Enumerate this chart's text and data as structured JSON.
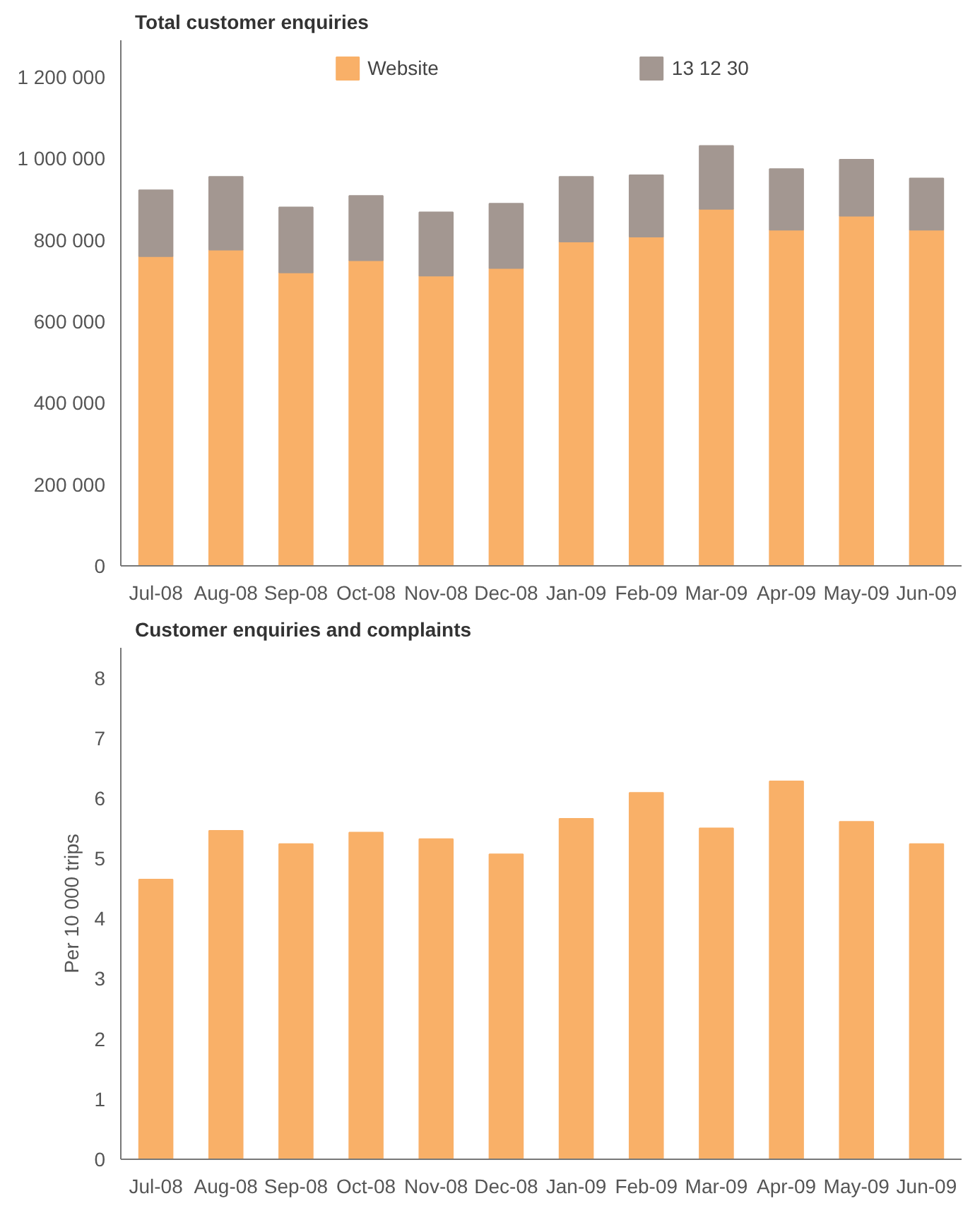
{
  "chart_data": [
    {
      "type": "bar",
      "title": "Total customer enquiries",
      "stacked": true,
      "grid": false,
      "legend": "top",
      "categories": [
        "Jul-08",
        "Aug-08",
        "Sep-08",
        "Oct-08",
        "Nov-08",
        "Dec-08",
        "Jan-09",
        "Feb-09",
        "Mar-09",
        "Apr-09",
        "May-09",
        "Jun-09"
      ],
      "series": [
        {
          "name": "Website",
          "color": "#f9b068",
          "values": [
            760000,
            776000,
            720000,
            750000,
            712000,
            731000,
            796000,
            808000,
            876000,
            825000,
            859000,
            825000
          ]
        },
        {
          "name": "13 12 30",
          "color": "#a39791",
          "values": [
            162000,
            179000,
            160000,
            158000,
            156000,
            158000,
            159000,
            151000,
            155000,
            149000,
            138000,
            126000
          ]
        }
      ],
      "ylim": [
        0,
        1290000
      ],
      "yticks": [
        0,
        {
          "value": 200000,
          "label": "200 000"
        },
        {
          "value": 400000,
          "label": "400 000"
        },
        {
          "value": 600000,
          "label": "600 000"
        },
        {
          "value": 800000,
          "label": "800 000"
        },
        {
          "value": 1000000,
          "label": "1 000 000"
        },
        {
          "value": 1200000,
          "label": "1 200 000"
        }
      ]
    },
    {
      "type": "bar",
      "title": "Customer enquiries and complaints",
      "ylabel": "Per 10 000 trips",
      "grid": false,
      "categories": [
        "Jul-08",
        "Aug-08",
        "Sep-08",
        "Oct-08",
        "Nov-08",
        "Dec-08",
        "Jan-09",
        "Feb-09",
        "Mar-09",
        "Apr-09",
        "May-09",
        "Jun-09"
      ],
      "series": [
        {
          "color": "#f9b068",
          "values": [
            4.65,
            5.46,
            5.24,
            5.43,
            5.32,
            5.07,
            5.66,
            6.09,
            5.5,
            6.28,
            5.61,
            5.24
          ]
        }
      ],
      "ylim": [
        0,
        8.5
      ],
      "yticks": [
        0,
        1,
        2,
        3,
        4,
        5,
        6,
        7,
        8
      ]
    }
  ]
}
